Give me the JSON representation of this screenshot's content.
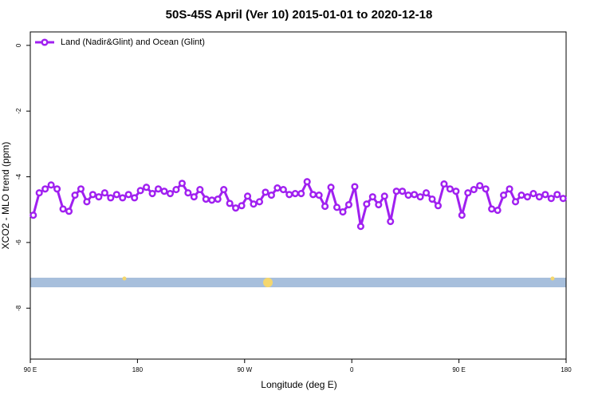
{
  "chart_data": {
    "type": "line",
    "title": "50S-45S April (Ver 10)   2015-01-01 to 2020-12-18",
    "xlabel": "Longitude (deg E)",
    "ylabel": "XCO2 - MLO trend (ppm)",
    "x": [
      92.5,
      97.5,
      102.5,
      107.5,
      112.5,
      117.5,
      122.5,
      127.5,
      132.5,
      137.5,
      142.5,
      147.5,
      152.5,
      157.5,
      162.5,
      167.5,
      172.5,
      177.5,
      182.5,
      187.5,
      192.5,
      197.5,
      202.5,
      207.5,
      212.5,
      217.5,
      222.5,
      227.5,
      232.5,
      237.5,
      242.5,
      247.5,
      252.5,
      257.5,
      262.5,
      267.5,
      272.5,
      277.5,
      282.5,
      287.5,
      292.5,
      297.5,
      302.5,
      307.5,
      312.5,
      317.5,
      322.5,
      327.5,
      332.5,
      337.5,
      342.5,
      347.5,
      352.5,
      357.5,
      362.5,
      367.5,
      372.5,
      377.5,
      382.5,
      387.5,
      392.5,
      397.5,
      402.5,
      407.5,
      412.5,
      417.5,
      422.5,
      427.5,
      432.5,
      437.5,
      442.5,
      447.5,
      452.5,
      457.5,
      462.5,
      467.5,
      472.5,
      477.5,
      482.5,
      487.5,
      492.5,
      497.5,
      502.5,
      507.5,
      512.5,
      517.5,
      522.5,
      527.5,
      532.5,
      537.5
    ],
    "series": [
      {
        "name": "Land (Nadir&Glint) and Ocean (Glint)",
        "color": "#a020f0",
        "values": [
          -5.17,
          -4.49,
          -4.37,
          -4.25,
          -4.37,
          -4.98,
          -5.05,
          -4.56,
          -4.37,
          -4.76,
          -4.54,
          -4.61,
          -4.49,
          -4.64,
          -4.54,
          -4.64,
          -4.54,
          -4.64,
          -4.42,
          -4.32,
          -4.51,
          -4.37,
          -4.44,
          -4.51,
          -4.39,
          -4.2,
          -4.49,
          -4.61,
          -4.39,
          -4.68,
          -4.71,
          -4.68,
          -4.39,
          -4.81,
          -4.95,
          -4.88,
          -4.59,
          -4.83,
          -4.76,
          -4.47,
          -4.56,
          -4.34,
          -4.39,
          -4.54,
          -4.51,
          -4.51,
          -4.15,
          -4.54,
          -4.56,
          -4.9,
          -4.32,
          -4.93,
          -5.07,
          -4.85,
          -4.3,
          -5.51,
          -4.83,
          -4.61,
          -4.85,
          -4.59,
          -5.36,
          -4.44,
          -4.44,
          -4.56,
          -4.54,
          -4.61,
          -4.49,
          -4.68,
          -4.88,
          -4.22,
          -4.37,
          -4.44,
          -5.17,
          -4.49,
          -4.39,
          -4.27,
          -4.37,
          -4.98,
          -5.02,
          -4.56,
          -4.37,
          -4.76,
          -4.56,
          -4.61,
          -4.51,
          -4.61,
          -4.54,
          -4.66,
          -4.54,
          -4.66
        ]
      }
    ],
    "xlim": [
      90,
      540
    ],
    "xticks": [
      {
        "value": 90,
        "label": "90 E"
      },
      180,
      {
        "value": 270,
        "label": "90 W"
      },
      {
        "value": 360,
        "label": "0"
      },
      {
        "value": 450,
        "label": "90 E"
      },
      {
        "value": 540,
        "label": "180"
      }
    ],
    "ylim": [
      -9.55,
      0.41
    ],
    "yticks": [
      0,
      -2,
      -4,
      -6,
      -8
    ],
    "legend": "top-left"
  }
}
